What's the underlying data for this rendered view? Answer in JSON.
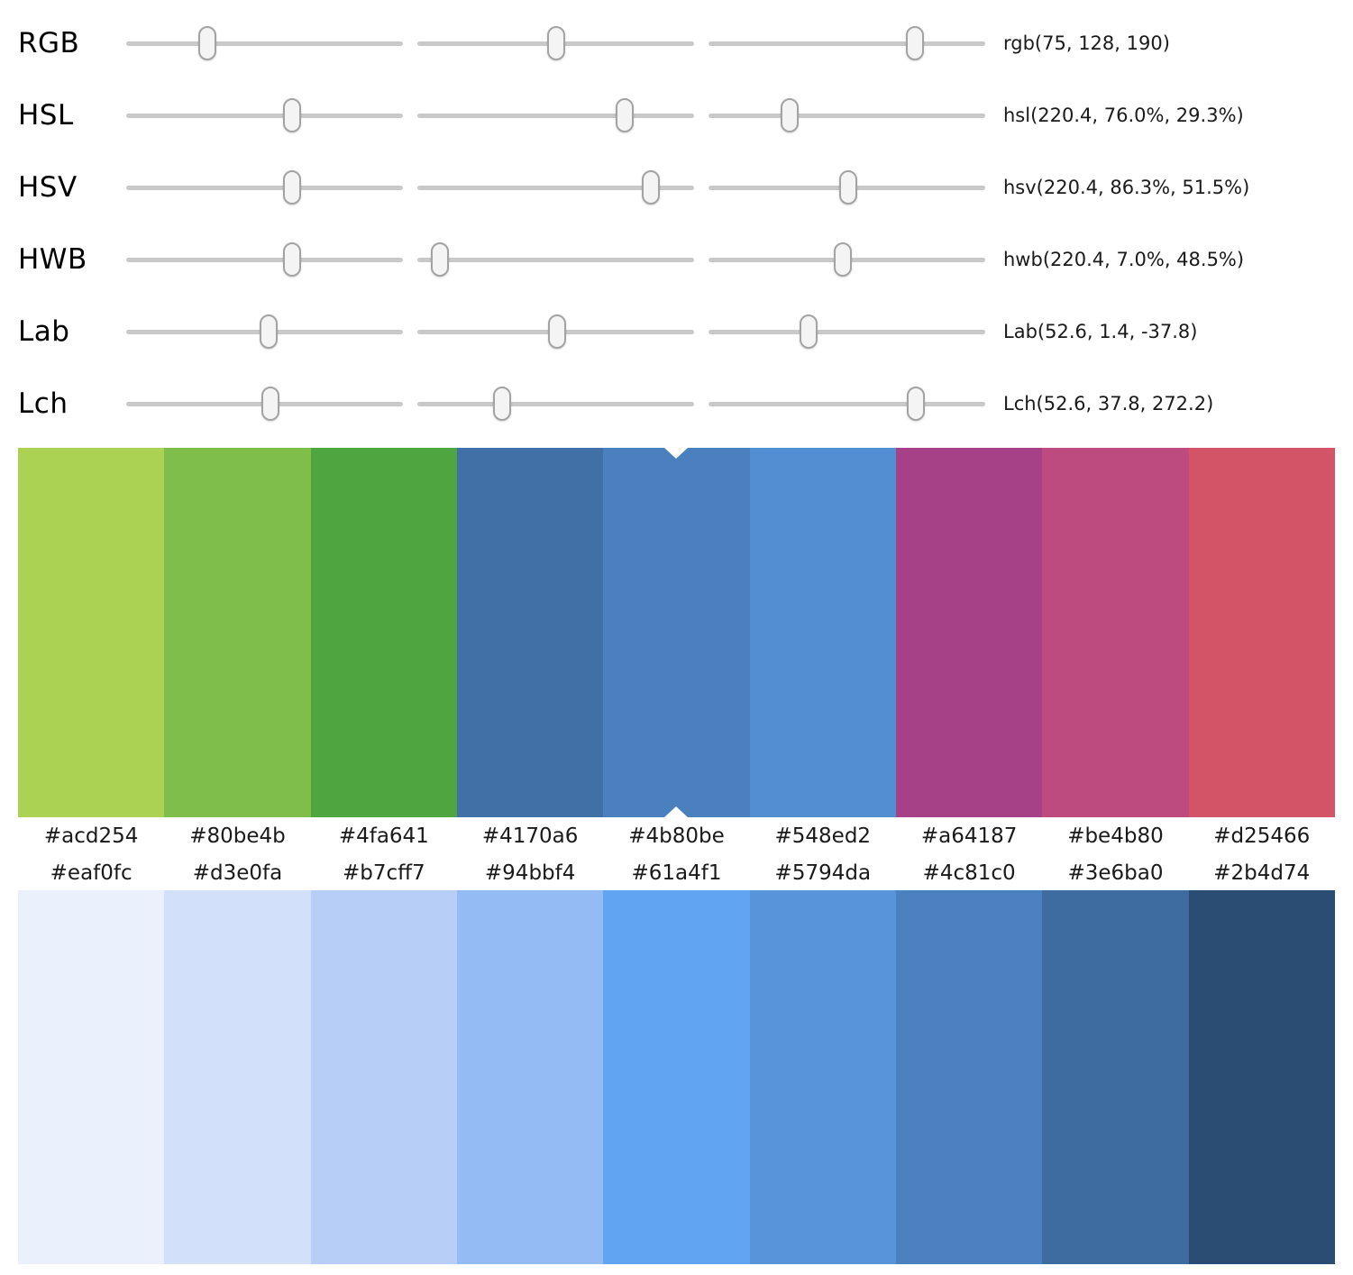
{
  "sliders": [
    {
      "label": "RGB",
      "value": "rgb(75, 128, 190)",
      "positions": [
        29.4,
        50.2,
        74.5
      ]
    },
    {
      "label": "HSL",
      "value": "hsl(220.4, 76.0%, 29.3%)",
      "positions": [
        60.0,
        75.0,
        29.3
      ]
    },
    {
      "label": "HSV",
      "value": "hsv(220.4, 86.3%, 51.5%)",
      "positions": [
        60.0,
        84.5,
        50.5
      ]
    },
    {
      "label": "HWB",
      "value": "hwb(220.4, 7.0%, 48.5%)",
      "positions": [
        60.0,
        8.0,
        48.5
      ]
    },
    {
      "label": "Lab",
      "value": "Lab(52.6, 1.4, -37.8)",
      "positions": [
        51.5,
        50.5,
        36.0
      ]
    },
    {
      "label": "Lch",
      "value": "Lch(52.6, 37.8, 272.2)",
      "positions": [
        52.0,
        30.5,
        75.0
      ]
    }
  ],
  "harmony_palette": {
    "hexes": [
      "#acd254",
      "#80be4b",
      "#4fa641",
      "#4170a6",
      "#4b80be",
      "#548ed2",
      "#a64187",
      "#be4b80",
      "#d25466"
    ],
    "selected_index": 4,
    "selected_hex": "#4b80be"
  },
  "tint_shade_scale": {
    "hexes": [
      "#eaf0fc",
      "#d3e0fa",
      "#b7cff7",
      "#94bbf4",
      "#61a4f1",
      "#5794da",
      "#4c81c0",
      "#3e6ba0",
      "#2b4d74"
    ]
  },
  "ui_colors": {
    "background": "#ffffff",
    "track": "#c9c9c9",
    "thumb_fill": "#f4f4f4",
    "thumb_border": "#a3a3a3",
    "selection_marker": "#ffffff",
    "text": "#1a1a1a"
  }
}
